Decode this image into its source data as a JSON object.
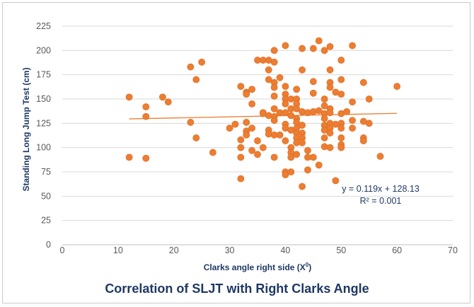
{
  "chart_data": {
    "type": "scatter",
    "title": "",
    "caption": "Correlation of SLJT with Right Clarks Angle",
    "xlabel": "Clarks angle right side (X",
    "xlabel_sup": "0",
    "xlabel_close": ")",
    "ylabel": "Standing Long Jump Test (cm)",
    "xlim": [
      0,
      70
    ],
    "ylim": [
      0,
      225
    ],
    "xticks": [
      0,
      10,
      20,
      30,
      40,
      50,
      60,
      70
    ],
    "yticks": [
      0,
      25,
      50,
      75,
      100,
      125,
      150,
      175,
      200,
      225
    ],
    "grid": "horizontal",
    "colors": {
      "points": "#ed7d31",
      "trendline": "#ed7d31",
      "axis_text": "#1f3864",
      "grid": "#d9d9d9"
    },
    "trendline": {
      "type": "linear",
      "slope": 0.119,
      "intercept": 128.13,
      "x_range": [
        12,
        60
      ]
    },
    "equation_label": "y = 0.119x + 128.13",
    "r2_label": "R² = 0.001",
    "series": [
      {
        "points": [
          [
            12,
            152
          ],
          [
            12,
            90
          ],
          [
            15,
            142
          ],
          [
            15,
            132
          ],
          [
            15,
            89
          ],
          [
            18,
            152
          ],
          [
            19,
            147
          ],
          [
            23,
            183
          ],
          [
            23,
            126
          ],
          [
            24,
            170
          ],
          [
            24,
            110
          ],
          [
            25,
            188
          ],
          [
            27,
            95
          ],
          [
            30,
            120
          ],
          [
            31,
            124
          ],
          [
            32,
            163
          ],
          [
            32,
            108
          ],
          [
            32,
            100
          ],
          [
            32,
            90
          ],
          [
            32,
            68
          ],
          [
            33,
            157
          ],
          [
            33,
            155
          ],
          [
            33,
            126
          ],
          [
            33,
            117
          ],
          [
            33,
            113
          ],
          [
            34,
            160
          ],
          [
            34,
            145
          ],
          [
            34,
            120
          ],
          [
            34,
            97
          ],
          [
            35,
            190
          ],
          [
            35,
            107
          ],
          [
            35,
            93
          ],
          [
            36,
            190
          ],
          [
            36,
            136
          ],
          [
            36,
            135
          ],
          [
            36,
            100
          ],
          [
            37,
            190
          ],
          [
            37,
            180
          ],
          [
            37,
            170
          ],
          [
            37,
            133
          ],
          [
            37,
            118
          ],
          [
            37,
            114
          ],
          [
            38,
            200
          ],
          [
            38,
            188
          ],
          [
            38,
            167
          ],
          [
            38,
            162
          ],
          [
            38,
            153
          ],
          [
            38,
            140
          ],
          [
            38,
            132
          ],
          [
            38,
            128
          ],
          [
            38,
            113
          ],
          [
            38,
            90
          ],
          [
            39,
            172
          ],
          [
            39,
            136
          ],
          [
            39,
            113
          ],
          [
            40,
            205
          ],
          [
            40,
            163
          ],
          [
            40,
            155
          ],
          [
            40,
            150
          ],
          [
            40,
            145
          ],
          [
            40,
            136
          ],
          [
            40,
            124
          ],
          [
            40,
            120
          ],
          [
            40,
            107
          ],
          [
            40,
            75
          ],
          [
            40,
            72
          ],
          [
            41,
            150
          ],
          [
            41,
            140
          ],
          [
            41,
            133
          ],
          [
            41,
            118
          ],
          [
            41,
            100
          ],
          [
            41,
            95
          ],
          [
            41,
            90
          ],
          [
            41,
            75
          ],
          [
            42,
            160
          ],
          [
            42,
            150
          ],
          [
            42,
            145
          ],
          [
            42,
            140
          ],
          [
            42,
            130
          ],
          [
            42,
            126
          ],
          [
            42,
            120
          ],
          [
            42,
            115
          ],
          [
            42,
            110
          ],
          [
            42,
            105
          ],
          [
            42,
            93
          ],
          [
            43,
            202
          ],
          [
            43,
            180
          ],
          [
            43,
            137
          ],
          [
            43,
            123
          ],
          [
            43,
            115
          ],
          [
            43,
            110
          ],
          [
            43,
            105
          ],
          [
            43,
            60
          ],
          [
            44,
            136
          ],
          [
            44,
            97
          ],
          [
            44,
            90
          ],
          [
            44,
            77
          ],
          [
            45,
            202
          ],
          [
            45,
            168
          ],
          [
            45,
            156
          ],
          [
            45,
            137
          ],
          [
            45,
            90
          ],
          [
            46,
            210
          ],
          [
            46,
            138
          ],
          [
            46,
            82
          ],
          [
            47,
            200
          ],
          [
            47,
            150
          ],
          [
            47,
            143
          ],
          [
            47,
            135
          ],
          [
            47,
            130
          ],
          [
            47,
            123
          ],
          [
            47,
            118
          ],
          [
            47,
            110
          ],
          [
            47,
            101
          ],
          [
            48,
            204
          ],
          [
            48,
            180
          ],
          [
            48,
            167
          ],
          [
            48,
            162
          ],
          [
            48,
            140
          ],
          [
            48,
            136
          ],
          [
            48,
            125
          ],
          [
            48,
            120
          ],
          [
            48,
            115
          ],
          [
            48,
            100
          ],
          [
            49,
            157
          ],
          [
            49,
            124
          ],
          [
            49,
            66
          ],
          [
            50,
            190
          ],
          [
            50,
            170
          ],
          [
            50,
            155
          ],
          [
            50,
            135
          ],
          [
            50,
            125
          ],
          [
            50,
            120
          ],
          [
            50,
            110
          ],
          [
            50,
            103
          ],
          [
            50,
            100
          ],
          [
            51,
            137
          ],
          [
            52,
            205
          ],
          [
            52,
            147
          ],
          [
            52,
            128
          ],
          [
            52,
            120
          ],
          [
            54,
            167
          ],
          [
            54,
            127
          ],
          [
            54,
            110
          ],
          [
            54,
            107
          ],
          [
            55,
            150
          ],
          [
            55,
            125
          ],
          [
            57,
            91
          ],
          [
            60,
            163
          ]
        ]
      }
    ]
  }
}
